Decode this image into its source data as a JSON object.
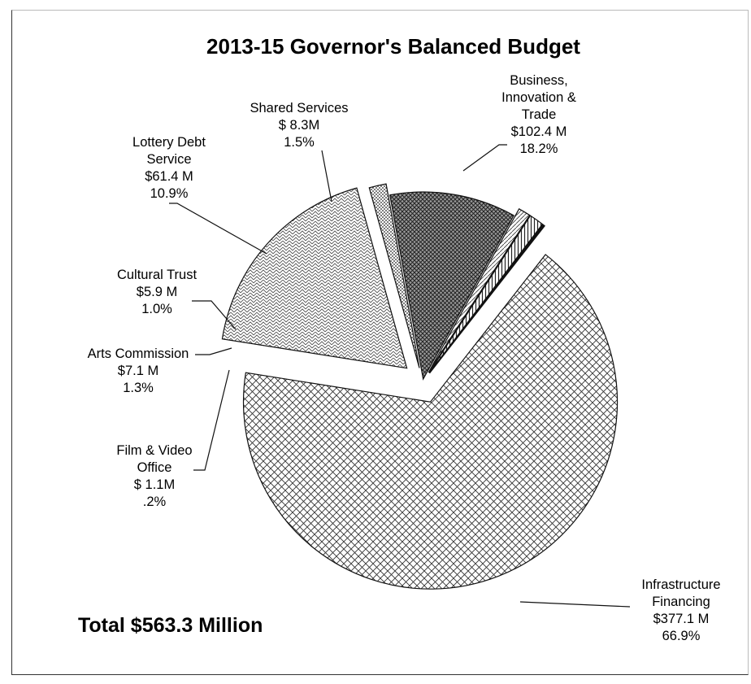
{
  "chart_data": {
    "type": "pie",
    "title": "2013-15 Governor's Balanced Budget",
    "total_label": "Total $563.3 Million",
    "slices": [
      {
        "name": "Infrastructure Financing",
        "value": 377.1,
        "percent": 66.9,
        "label_lines": [
          "Infrastructure",
          "Financing",
          "$377.1 M",
          "66.9%"
        ],
        "pattern": "crosshatch"
      },
      {
        "name": "Business, Innovation & Trade",
        "value": 102.4,
        "percent": 18.2,
        "label_lines": [
          "Business,",
          "Innovation &",
          "Trade",
          "$102.4 M",
          "18.2%"
        ],
        "pattern": "brick"
      },
      {
        "name": "Shared Services",
        "value": 8.3,
        "percent": 1.5,
        "label_lines": [
          "Shared Services",
          "$ 8.3M",
          "1.5%"
        ],
        "pattern": "dots"
      },
      {
        "name": "Lottery Debt Service",
        "value": 61.4,
        "percent": 10.9,
        "label_lines": [
          "Lottery Debt",
          "Service",
          "$61.4 M",
          "10.9%"
        ],
        "pattern": "dense"
      },
      {
        "name": "Cultural Trust",
        "value": 5.9,
        "percent": 1.0,
        "label_lines": [
          "Cultural Trust",
          "$5.9 M",
          "1.0%"
        ],
        "pattern": "diagonal"
      },
      {
        "name": "Arts Commission",
        "value": 7.1,
        "percent": 1.3,
        "label_lines": [
          "Arts Commission",
          "$7.1 M",
          "1.3%"
        ],
        "pattern": "vertical"
      },
      {
        "name": "Film & Video Office",
        "value": 1.1,
        "percent": 0.2,
        "label_lines": [
          "Film & Video",
          "Office",
          "$ 1.1M",
          ".2%"
        ],
        "pattern": "solid"
      }
    ]
  }
}
